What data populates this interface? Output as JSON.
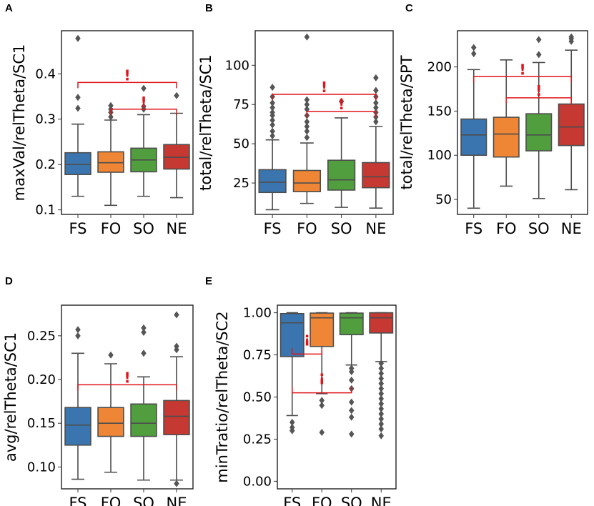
{
  "colors": {
    "FS": "#3b75af",
    "FO": "#ef8636",
    "SO": "#519e3e",
    "NE": "#c53932",
    "whisker": "#4d4d4d",
    "significance": "#e0151b"
  },
  "chart_data": [
    {
      "panel": "A",
      "type": "box",
      "ylabel": "maxVal/relTheta/SC1",
      "ylim": [
        0.09,
        0.495
      ],
      "yticks": [
        0.1,
        0.2,
        0.3,
        0.4
      ],
      "yticklabels": [
        "0.1",
        "0.2",
        "0.3",
        "0.4"
      ],
      "categories": [
        "FS",
        "FO",
        "SO",
        "NE"
      ],
      "boxes": [
        {
          "q1": 0.178,
          "median": 0.2,
          "q3": 0.226,
          "lo": 0.13,
          "hi": 0.289,
          "outliers": [
            0.324,
            0.348,
            0.478
          ]
        },
        {
          "q1": 0.183,
          "median": 0.204,
          "q3": 0.228,
          "lo": 0.11,
          "hi": 0.298,
          "outliers": [
            0.305,
            0.315,
            0.322,
            0.33
          ]
        },
        {
          "q1": 0.184,
          "median": 0.21,
          "q3": 0.236,
          "lo": 0.13,
          "hi": 0.31,
          "outliers": [
            0.322,
            0.328,
            0.368
          ]
        },
        {
          "q1": 0.19,
          "median": 0.216,
          "q3": 0.244,
          "lo": 0.127,
          "hi": 0.313,
          "outliers": [
            0.352
          ]
        }
      ],
      "significance": [
        {
          "from": 0,
          "to": 3,
          "y": 0.381,
          "label": "!"
        },
        {
          "from": 1,
          "to": 3,
          "y": 0.322,
          "label": "!"
        }
      ]
    },
    {
      "panel": "B",
      "type": "box",
      "ylabel": "total/relTheta/SC1",
      "ylim": [
        5,
        122
      ],
      "yticks": [
        25,
        50,
        75,
        100
      ],
      "yticklabels": [
        "25",
        "50",
        "75",
        "100"
      ],
      "categories": [
        "FS",
        "FO",
        "SO",
        "NE"
      ],
      "boxes": [
        {
          "q1": 19,
          "median": 25.5,
          "q3": 33.5,
          "lo": 8,
          "hi": 52.5,
          "outliers": [
            55,
            58,
            62,
            65,
            68,
            70,
            73,
            76,
            80,
            86
          ]
        },
        {
          "q1": 19.5,
          "median": 25,
          "q3": 33,
          "lo": 12,
          "hi": 50.5,
          "outliers": [
            54,
            58,
            61,
            64,
            68,
            72,
            75,
            78,
            118
          ]
        },
        {
          "q1": 20.5,
          "median": 27,
          "q3": 39.5,
          "lo": 9.5,
          "hi": 66.5,
          "outliers": [
            77
          ]
        },
        {
          "q1": 22,
          "median": 29,
          "q3": 38,
          "lo": 9,
          "hi": 61,
          "outliers": [
            64,
            67,
            70,
            73,
            76,
            80,
            84,
            92
          ]
        }
      ],
      "significance": [
        {
          "from": 0,
          "to": 3,
          "y": 81.5,
          "label": "!"
        },
        {
          "from": 1,
          "to": 3,
          "y": 70.5,
          "label": "!"
        }
      ]
    },
    {
      "panel": "C",
      "type": "box",
      "ylabel": "total/relTheta/SPT",
      "ylim": [
        33,
        241
      ],
      "yticks": [
        50,
        100,
        150,
        200
      ],
      "yticklabels": [
        "50",
        "100",
        "150",
        "200"
      ],
      "categories": [
        "FS",
        "FO",
        "SO",
        "NE"
      ],
      "boxes": [
        {
          "q1": 100,
          "median": 123,
          "q3": 141,
          "lo": 40,
          "hi": 197,
          "outliers": [
            215,
            222
          ]
        },
        {
          "q1": 98,
          "median": 124,
          "q3": 143,
          "lo": 65,
          "hi": 208,
          "outliers": []
        },
        {
          "q1": 105,
          "median": 123,
          "q3": 147,
          "lo": 51,
          "hi": 205,
          "outliers": [
            214,
            231
          ]
        },
        {
          "q1": 111,
          "median": 132,
          "q3": 158,
          "lo": 61,
          "hi": 219,
          "outliers": [
            229,
            232,
            234
          ]
        }
      ],
      "significance": [
        {
          "from": 0,
          "to": 3,
          "y": 189,
          "label": "!"
        },
        {
          "from": 1,
          "to": 3,
          "y": 165,
          "label": "!"
        }
      ]
    },
    {
      "panel": "D",
      "type": "box",
      "ylabel": "avg/relTheta/SC1",
      "ylim": [
        0.075,
        0.285
      ],
      "yticks": [
        0.1,
        0.15,
        0.2,
        0.25
      ],
      "yticklabels": [
        "0.10",
        "0.15",
        "0.20",
        "0.25"
      ],
      "categories": [
        "FS",
        "FO",
        "SO",
        "NE"
      ],
      "boxes": [
        {
          "q1": 0.125,
          "median": 0.148,
          "q3": 0.168,
          "lo": 0.086,
          "hi": 0.23,
          "outliers": [
            0.25,
            0.257
          ]
        },
        {
          "q1": 0.135,
          "median": 0.15,
          "q3": 0.168,
          "lo": 0.094,
          "hi": 0.218,
          "outliers": [
            0.228
          ]
        },
        {
          "q1": 0.135,
          "median": 0.15,
          "q3": 0.172,
          "lo": 0.085,
          "hi": 0.203,
          "outliers": [
            0.23,
            0.254,
            0.259
          ]
        },
        {
          "q1": 0.137,
          "median": 0.158,
          "q3": 0.176,
          "lo": 0.085,
          "hi": 0.226,
          "outliers": [
            0.081,
            0.234,
            0.238,
            0.274
          ]
        }
      ],
      "significance": [
        {
          "from": 0,
          "to": 3,
          "y": 0.194,
          "label": "!"
        }
      ]
    },
    {
      "panel": "E",
      "type": "box",
      "ylabel": "minTratio/relTheta/SC2",
      "ylim": [
        -0.045,
        1.045
      ],
      "yticks": [
        0.0,
        0.25,
        0.5,
        0.75,
        1.0
      ],
      "yticklabels": [
        "0.00",
        "0.25",
        "0.50",
        "0.75",
        "1.00"
      ],
      "categories": [
        "FS",
        "FO",
        "SO",
        "NE"
      ],
      "boxes": [
        {
          "q1": 0.74,
          "median": 0.94,
          "q3": 0.995,
          "lo": 0.39,
          "hi": 1.0,
          "outliers": [
            0.3,
            0.32,
            0.35
          ]
        },
        {
          "q1": 0.8,
          "median": 0.97,
          "q3": 0.998,
          "lo": 0.52,
          "hi": 1.0,
          "outliers": [
            0.29,
            0.45,
            0.48
          ]
        },
        {
          "q1": 0.87,
          "median": 0.97,
          "q3": 0.998,
          "lo": 0.69,
          "hi": 1.0,
          "outliers": [
            0.28,
            0.38,
            0.42,
            0.47,
            0.55,
            0.6,
            0.65,
            0.67
          ]
        },
        {
          "q1": 0.88,
          "median": 0.97,
          "q3": 1.0,
          "lo": 0.71,
          "hi": 1.0,
          "outliers": [
            0.27,
            0.31,
            0.34,
            0.37,
            0.4,
            0.43,
            0.46,
            0.49,
            0.52,
            0.55,
            0.58,
            0.61,
            0.64,
            0.67,
            0.7
          ]
        }
      ],
      "significance": [
        {
          "from": 0,
          "to": 1,
          "y": 0.755,
          "label": "¡",
          "tickDir": "down"
        },
        {
          "from": 0,
          "to": 2,
          "y": 0.525,
          "label": "¡",
          "tickDir": "down"
        }
      ]
    }
  ]
}
